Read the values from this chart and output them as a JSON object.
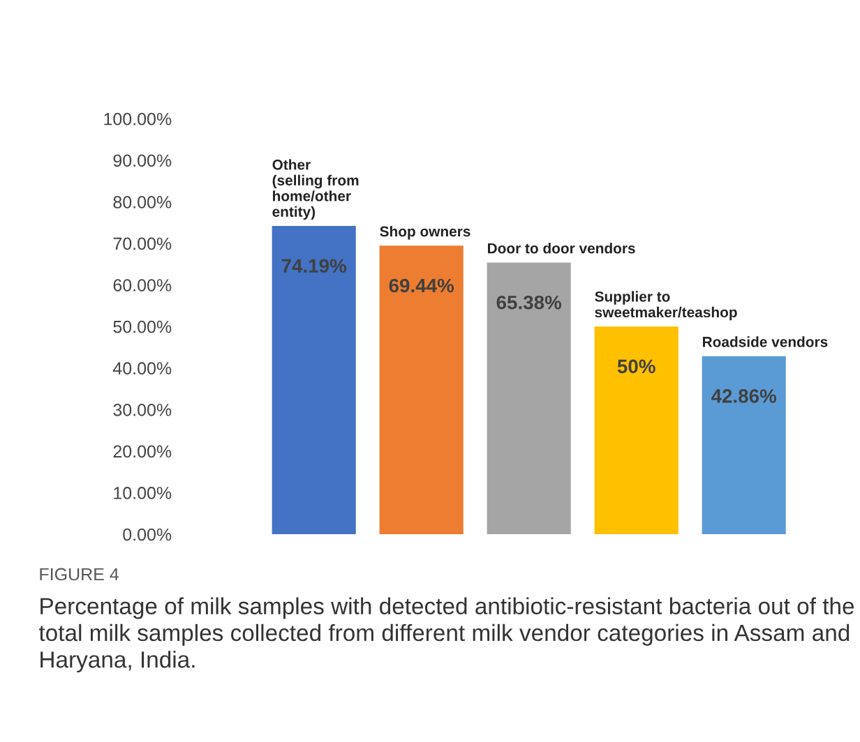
{
  "chart_data": {
    "type": "bar",
    "categories": [
      "Other\n(selling from\nhome/other\nentity)",
      "Shop owners",
      "Door to door vendors",
      "Supplier to\nsweetmaker/teashop",
      "Roadside vendors"
    ],
    "values": [
      74.19,
      69.44,
      65.38,
      50,
      42.86
    ],
    "value_labels": [
      "74.19%",
      "69.44%",
      "65.38%",
      "50%",
      "42.86%"
    ],
    "colors": [
      "#4472c4",
      "#ed7d31",
      "#a5a5a5",
      "#ffc000",
      "#5b9bd5"
    ],
    "ylim": [
      0,
      100
    ],
    "yticks": [
      {
        "value": 0,
        "label": "0.00%"
      },
      {
        "value": 10,
        "label": "10.00%"
      },
      {
        "value": 20,
        "label": "20.00%"
      },
      {
        "value": 30,
        "label": "30.00%"
      },
      {
        "value": 40,
        "label": "40.00%"
      },
      {
        "value": 50,
        "label": "50.00%"
      },
      {
        "value": 60,
        "label": "60.00%"
      },
      {
        "value": 70,
        "label": "70.00%"
      },
      {
        "value": 80,
        "label": "80.00%"
      },
      {
        "value": 90,
        "label": "90.00%"
      },
      {
        "value": 100,
        "label": "100.00%"
      }
    ],
    "grid": false,
    "annotations": [
      "FIGURE 4",
      "Percentage of milk samples with detected antibiotic-resistant bacteria out of the total milk samples collected from different milk vendor categories in Assam and Haryana, India."
    ]
  }
}
